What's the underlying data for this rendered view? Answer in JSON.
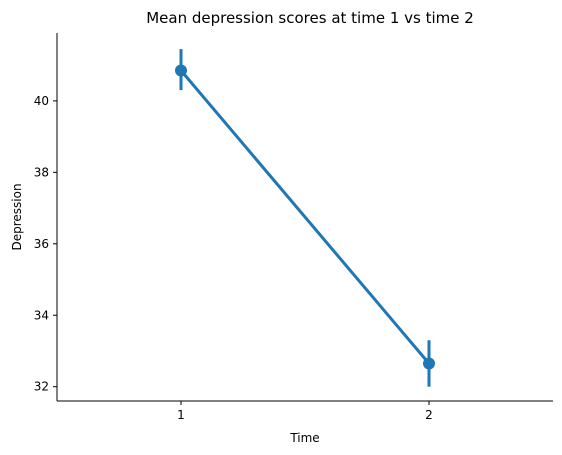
{
  "chart_data": {
    "type": "line",
    "title": "Mean depression scores at time 1 vs time 2",
    "xlabel": "Time",
    "ylabel": "Depression",
    "categories": [
      "1",
      "2"
    ],
    "series": [
      {
        "values": [
          40.85,
          32.65
        ],
        "ci_low": [
          40.3,
          32.0
        ],
        "ci_high": [
          41.45,
          33.3
        ]
      }
    ],
    "ylim": [
      31.6,
      41.9
    ],
    "yticks": [
      32,
      34,
      36,
      38,
      40
    ],
    "grid": false,
    "color": "#1f77b4"
  }
}
